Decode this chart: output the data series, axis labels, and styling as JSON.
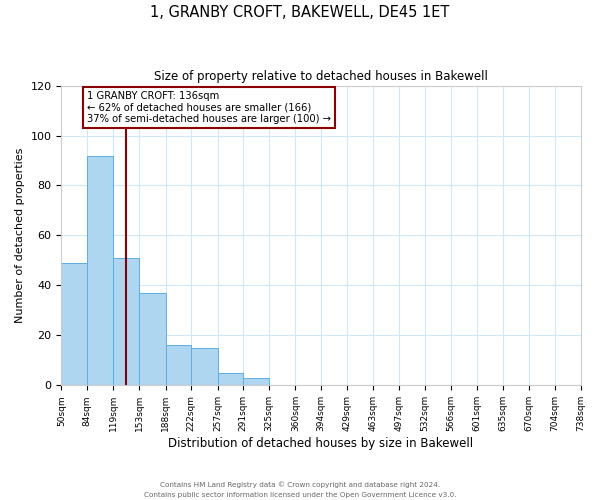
{
  "title": "1, GRANBY CROFT, BAKEWELL, DE45 1ET",
  "subtitle": "Size of property relative to detached houses in Bakewell",
  "xlabel": "Distribution of detached houses by size in Bakewell",
  "ylabel": "Number of detached properties",
  "bin_edges": [
    50,
    84,
    119,
    153,
    188,
    222,
    257,
    291,
    325,
    360,
    394,
    429,
    463,
    497,
    532,
    566,
    601,
    635,
    670,
    704,
    738
  ],
  "counts": [
    49,
    92,
    51,
    37,
    16,
    15,
    5,
    3,
    0,
    0,
    0,
    0,
    0,
    0,
    0,
    0,
    0,
    0,
    0,
    0
  ],
  "bar_color": "#AED6F1",
  "bar_edge_color": "#5DADE2",
  "property_line_x": 136,
  "property_line_color": "#8B0000",
  "ylim": [
    0,
    120
  ],
  "annotation_title": "1 GRANBY CROFT: 136sqm",
  "annotation_line1": "← 62% of detached houses are smaller (166)",
  "annotation_line2": "37% of semi-detached houses are larger (100) →",
  "annotation_box_color": "#8B0000",
  "footer_line1": "Contains HM Land Registry data © Crown copyright and database right 2024.",
  "footer_line2": "Contains public sector information licensed under the Open Government Licence v3.0.",
  "tick_labels": [
    "50sqm",
    "84sqm",
    "119sqm",
    "153sqm",
    "188sqm",
    "222sqm",
    "257sqm",
    "291sqm",
    "325sqm",
    "360sqm",
    "394sqm",
    "429sqm",
    "463sqm",
    "497sqm",
    "532sqm",
    "566sqm",
    "601sqm",
    "635sqm",
    "670sqm",
    "704sqm",
    "738sqm"
  ],
  "background_color": "#FFFFFF",
  "grid_color": "#D0E8F5"
}
